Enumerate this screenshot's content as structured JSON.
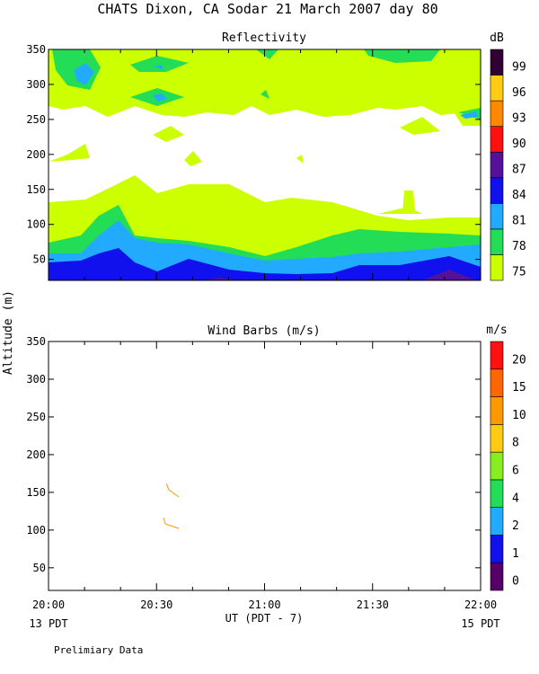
{
  "page": {
    "title": "CHATS Dixon, CA  Sodar  21 March 2007  day  80",
    "ylabel": "Altitude (m)",
    "xlabel": "UT  (PDT - 7)",
    "x_left_note": "13 PDT",
    "x_right_note": "15 PDT",
    "footnote": "Prelimiary Data"
  },
  "chart_data": [
    {
      "type": "contour",
      "title": "Reflectivity",
      "ylim": [
        20,
        350
      ],
      "xlim": [
        0,
        120
      ],
      "yticks": [
        50,
        100,
        150,
        200,
        250,
        300,
        350
      ],
      "colorbar": {
        "unit": "dB",
        "labels": [
          "75",
          "78",
          "81",
          "84",
          "87",
          "90",
          "93",
          "96",
          "99"
        ],
        "colors": [
          "#ccff00",
          "#22dd55",
          "#22aaff",
          "#1111ee",
          "#551199",
          "#ff1111",
          "#ff8800",
          "#ffcc11",
          "#330033"
        ]
      },
      "contours": [
        {
          "level": 75,
          "color": "#ccff00",
          "altitude_range_m": [
            40,
            160
          ],
          "note": "near-continuous low layer, top ~145-165 m"
        },
        {
          "level": 78,
          "color": "#22dd55",
          "altitude_range_m": [
            40,
            135
          ],
          "note": "top ~90-135 m"
        },
        {
          "level": 81,
          "color": "#22aaff",
          "altitude_range_m": [
            40,
            120
          ],
          "note": "top ~75-120 m"
        },
        {
          "level": 84,
          "color": "#1111ee",
          "altitude_range_m": [
            40,
            80
          ],
          "note": "top ~50-80 m"
        },
        {
          "level": 87,
          "color": "#551199",
          "altitude_range_m": [
            40,
            52
          ],
          "note": "small patches near 20:45 and 21:50"
        }
      ]
    },
    {
      "type": "wind_barbs",
      "title": "Wind Barbs (m/s)",
      "ylim": [
        20,
        350
      ],
      "xlim": [
        0,
        120
      ],
      "yticks": [
        50,
        100,
        150,
        200,
        250,
        300,
        350
      ],
      "colorbar": {
        "unit": "m/s",
        "labels": [
          "0",
          "1",
          "2",
          "4",
          "6",
          "8",
          "10",
          "15",
          "20"
        ],
        "colors": [
          "#550066",
          "#1111ee",
          "#22aaff",
          "#22dd55",
          "#88ee22",
          "#ffcc11",
          "#ff9900",
          "#ff6600",
          "#ff1111"
        ]
      },
      "barbs": [
        {
          "time_min": 33,
          "altitude_m": 150,
          "color": "#ff9900"
        },
        {
          "time_min": 33,
          "altitude_m": 105,
          "color": "#ff9900"
        }
      ]
    }
  ],
  "x_axis": {
    "ticks": [
      0,
      30,
      60,
      90,
      120
    ],
    "ticklabels": [
      "20:00",
      "20:30",
      "21:00",
      "21:30",
      "22:00"
    ]
  }
}
